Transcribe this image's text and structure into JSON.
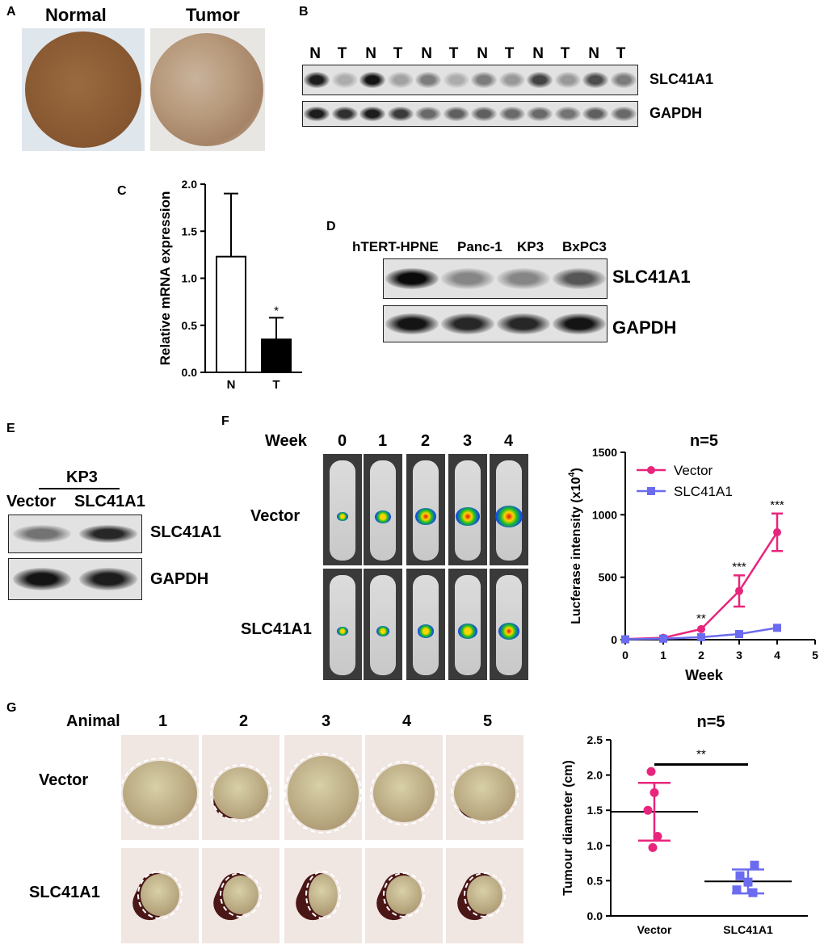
{
  "panels": {
    "A": "A",
    "B": "B",
    "C": "C",
    "D": "D",
    "E": "E",
    "F": "F",
    "G": "G"
  },
  "panel_a": {
    "normal": "Normal",
    "tumor": "Tumor"
  },
  "panel_b": {
    "lanes": [
      "N",
      "T",
      "N",
      "T",
      "N",
      "T",
      "N",
      "T",
      "N",
      "T",
      "N",
      "T"
    ],
    "row1": "SLC41A1",
    "row2": "GAPDH",
    "slc_intensity": [
      0.9,
      0.15,
      0.95,
      0.2,
      0.4,
      0.15,
      0.4,
      0.25,
      0.7,
      0.25,
      0.65,
      0.4
    ],
    "gapdh_intensity": [
      0.9,
      0.8,
      0.9,
      0.75,
      0.5,
      0.55,
      0.55,
      0.5,
      0.5,
      0.45,
      0.55,
      0.5
    ]
  },
  "panel_d": {
    "lanes": [
      "hTERT-HPNE",
      "Panc-1",
      "KP3",
      "BxPC3"
    ],
    "row1": "SLC41A1",
    "row2": "GAPDH",
    "slc_intensity": [
      1.0,
      0.35,
      0.35,
      0.6
    ],
    "gapdh_intensity": [
      0.95,
      0.85,
      0.85,
      0.95
    ]
  },
  "panel_e": {
    "group": "KP3",
    "lanes": [
      "Vector",
      "SLC41A1"
    ],
    "row1": "SLC41A1",
    "row2": "GAPDH",
    "slc_intensity": [
      0.45,
      0.85
    ],
    "gapdh_intensity": [
      0.95,
      0.9
    ]
  },
  "panel_f": {
    "week_label": "Week",
    "weeks": [
      "0",
      "1",
      "2",
      "3",
      "4"
    ],
    "rows": [
      "Vector",
      "SLC41A1"
    ],
    "signal_level": [
      [
        0.15,
        0.4,
        0.65,
        0.8,
        1.0
      ],
      [
        0.15,
        0.25,
        0.45,
        0.55,
        0.7
      ]
    ]
  },
  "panel_g": {
    "animal_label": "Animal",
    "animals": [
      "1",
      "2",
      "3",
      "4",
      "5"
    ],
    "rows": [
      "Vector",
      "SLC41A1"
    ]
  },
  "colors": {
    "vector": "#e8257c",
    "slc41a1": "#6b6bf0"
  },
  "chart_data": [
    {
      "type": "bar",
      "categories": [
        "N",
        "T"
      ],
      "values": [
        1.23,
        0.35
      ],
      "errors": [
        0.67,
        0.23
      ],
      "fills": [
        "#ffffff",
        "#000000"
      ],
      "significance": [
        "",
        "*"
      ],
      "ylabel": "Relative mRNA expression",
      "ylim": [
        0,
        2.0
      ],
      "yticks": [
        "0.0",
        "0.5",
        "1.0",
        "1.5",
        "2.0"
      ]
    },
    {
      "type": "line",
      "title": "n=5",
      "x": [
        0,
        1,
        2,
        3,
        4
      ],
      "series": [
        {
          "name": "Vector",
          "values": [
            5,
            15,
            85,
            390,
            860
          ],
          "errors": [
            3,
            6,
            15,
            125,
            150
          ],
          "color": "#e8257c"
        },
        {
          "name": "SLC41A1",
          "values": [
            3,
            8,
            20,
            45,
            95
          ],
          "errors": [
            2,
            3,
            6,
            10,
            20
          ],
          "color": "#6b6bf0"
        }
      ],
      "significance": [
        "",
        "",
        "**",
        "***",
        "***"
      ],
      "xlabel": "Week",
      "ylabel": "Lucferase intensity (x10",
      "ylabel_sup": "4",
      "ylabel_close": ")",
      "xlim": [
        0,
        5
      ],
      "ylim": [
        0,
        1500
      ],
      "xticks": [
        "0",
        "1",
        "2",
        "3",
        "4",
        "5"
      ],
      "yticks": [
        "0",
        "500",
        "1000",
        "1500"
      ]
    },
    {
      "type": "scatter",
      "title": "n=5",
      "categories": [
        "Vector",
        "SLC41A1"
      ],
      "points": [
        [
          2.05,
          1.75,
          1.5,
          1.13,
          0.97
        ],
        [
          0.72,
          0.57,
          0.48,
          0.37,
          0.33
        ]
      ],
      "means": [
        1.48,
        0.49
      ],
      "sd": [
        0.41,
        0.17
      ],
      "colors": [
        "#e8257c",
        "#6b6bf0"
      ],
      "significance": "**",
      "ylabel": "Tumour diameter (cm)",
      "ylim": [
        0,
        2.5
      ],
      "yticks": [
        "0.0",
        "0.5",
        "1.0",
        "1.5",
        "2.0",
        "2.5"
      ]
    }
  ]
}
